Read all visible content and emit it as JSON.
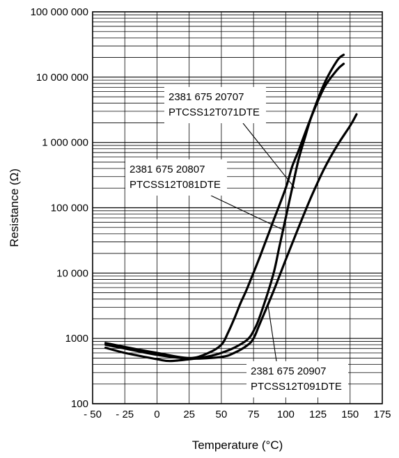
{
  "chart_data": {
    "type": "line",
    "xlabel": "Temperature (°C)",
    "ylabel": "Resistance (Ω)",
    "xlim": [
      -50,
      175
    ],
    "ylim": [
      100,
      100000000
    ],
    "yscale": "log",
    "grid": true,
    "x_ticks": [
      -50,
      -25,
      0,
      25,
      50,
      75,
      100,
      125,
      150,
      175
    ],
    "x_tick_labels": [
      "- 50",
      "- 25",
      "0",
      "25",
      "50",
      "75",
      "100",
      "125",
      "150",
      "175"
    ],
    "y_ticks": [
      100,
      1000,
      10000,
      100000,
      1000000,
      10000000,
      100000000
    ],
    "y_tick_labels": [
      "100",
      "1000",
      "10 000",
      "100 000",
      "1 000 000",
      "10 000 000",
      "100 000 000"
    ],
    "series": [
      {
        "name": "2381 675 20707 PTCSS12T071DTE",
        "x": [
          -40,
          -25,
          0,
          25,
          40,
          50,
          55,
          60,
          65,
          70,
          80,
          90,
          100,
          105,
          110,
          120,
          130,
          140,
          145
        ],
        "y": [
          850,
          740,
          600,
          500,
          600,
          800,
          1200,
          2000,
          3500,
          5800,
          18000,
          60000,
          200000,
          430000,
          750000,
          2500000,
          7000000,
          13000000,
          16000000
        ]
      },
      {
        "name": "2381 675 20807 PTCSS12T081DTE",
        "x": [
          -40,
          -25,
          0,
          10,
          25,
          40,
          50,
          60,
          70,
          75,
          80,
          90,
          95,
          100,
          105,
          110,
          115,
          120,
          130,
          140,
          145
        ],
        "y": [
          720,
          600,
          480,
          450,
          480,
          530,
          600,
          720,
          950,
          1300,
          2200,
          9000,
          25000,
          70000,
          200000,
          550000,
          1200000,
          2500000,
          8000000,
          18000000,
          22000000
        ]
      },
      {
        "name": "2381 675 20907 PTCSS12T091DTE",
        "x": [
          -40,
          -25,
          0,
          25,
          50,
          60,
          70,
          75,
          80,
          90,
          100,
          110,
          120,
          130,
          140,
          150,
          155
        ],
        "y": [
          800,
          700,
          560,
          490,
          520,
          600,
          780,
          1000,
          1700,
          5000,
          16000,
          50000,
          150000,
          400000,
          900000,
          1800000,
          2700000
        ]
      }
    ],
    "annotations": [
      {
        "lines": [
          "2381 675 20707",
          "PTCSS12T071DTE"
        ],
        "target": [
          107,
          200000
        ]
      },
      {
        "lines": [
          "2381 675 20807",
          "PTCSS12T081DTE"
        ],
        "target": [
          99,
          45000
        ]
      },
      {
        "lines": [
          "2381 675 20907",
          "PTCSS12T091DTE"
        ],
        "target": [
          86,
          3500
        ]
      }
    ]
  }
}
